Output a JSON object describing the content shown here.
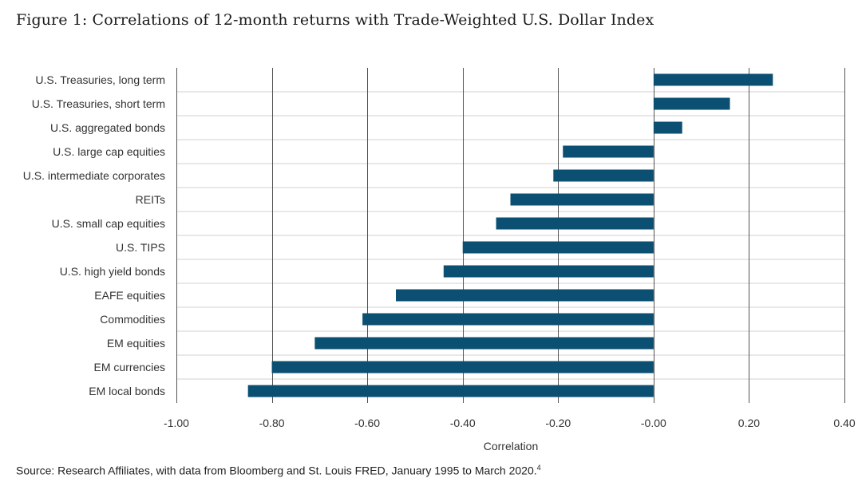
{
  "title": "Figure 1: Correlations of 12-month returns with Trade-Weighted U.S. Dollar Index",
  "source": {
    "text": "Source: Research Affiliates, with data from Bloomberg and St. Louis FRED, January 1995 to March 2020.",
    "footnote_mark": "4"
  },
  "colors": {
    "bar": "#0b4f72",
    "grid": "#d0d0d0",
    "vgrid": "#555555"
  },
  "chart_data": {
    "type": "bar",
    "orientation": "horizontal",
    "title": "Figure 1: Correlations of 12-month returns with Trade-Weighted U.S. Dollar Index",
    "xlabel": "Correlation",
    "ylabel": "",
    "xlim": [
      -1.0,
      0.4
    ],
    "x_ticks": [
      -1.0,
      -0.8,
      -0.6,
      -0.4,
      -0.2,
      0.0,
      0.2,
      0.4
    ],
    "x_tick_labels": [
      "-1.00",
      "-0.80",
      "-0.60",
      "-0.40",
      "-0.20",
      "-0.00",
      "0.20",
      "0.40"
    ],
    "grid": "vertical",
    "categories": [
      "U.S. Treasuries, long term",
      "U.S. Treasuries, short term",
      "U.S. aggregated bonds",
      "U.S. large cap equities",
      "U.S. intermediate corporates",
      "REITs",
      "U.S. small cap equities",
      "U.S. TIPS",
      "U.S. high yield bonds",
      "EAFE equities",
      "Commodities",
      "EM equities",
      "EM currencies",
      "EM local bonds"
    ],
    "values": [
      0.25,
      0.16,
      0.06,
      -0.19,
      -0.21,
      -0.3,
      -0.33,
      -0.4,
      -0.44,
      -0.54,
      -0.61,
      -0.71,
      -0.8,
      -0.85
    ]
  }
}
